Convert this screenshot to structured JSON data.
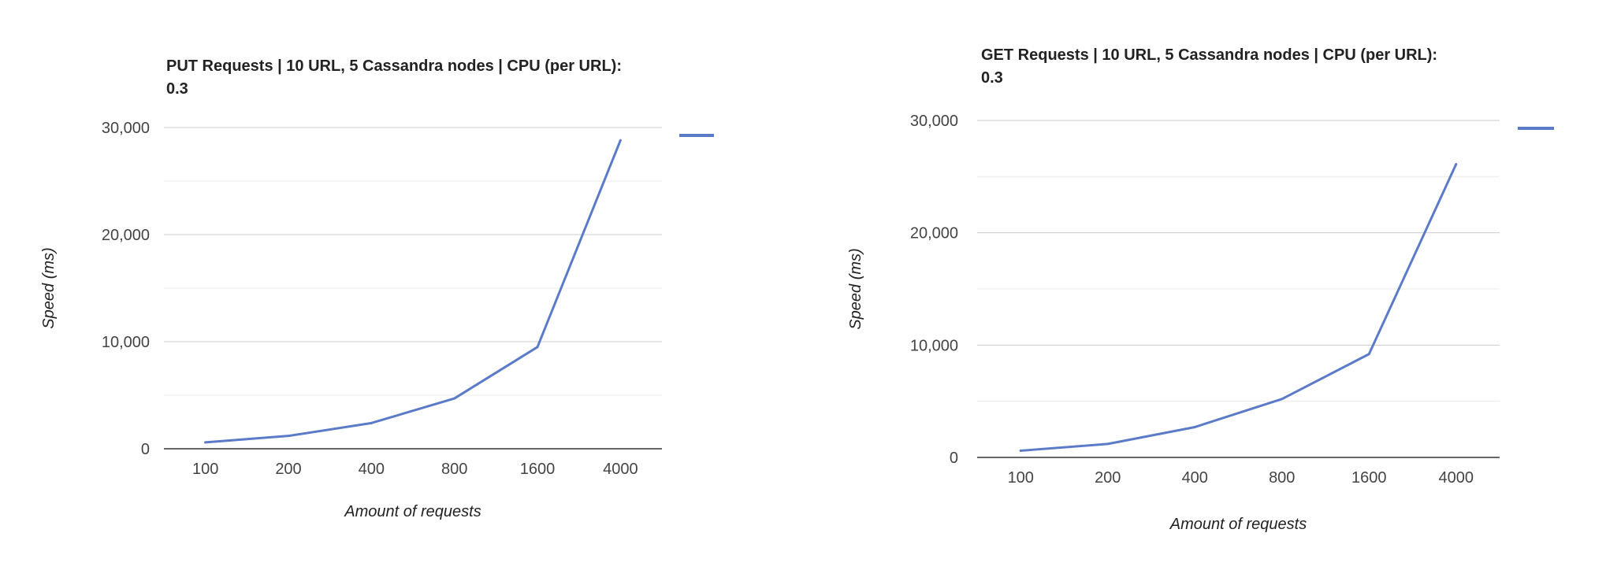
{
  "chart_data": [
    {
      "type": "line",
      "title": "PUT Requests | 10 URL, 5 Cassandra nodes | CPU (per URL): 0.3",
      "xlabel": "Amount of requests",
      "ylabel": "Speed (ms)",
      "categories": [
        "100",
        "200",
        "400",
        "800",
        "1600",
        "4000"
      ],
      "series": [
        {
          "values": [
            600,
            1200,
            2400,
            4700,
            9500,
            28800
          ],
          "color": "#5b7bc9"
        }
      ],
      "ylim": [
        0,
        30000
      ],
      "yticks": [
        "0",
        "10,000",
        "20,000",
        "30,000"
      ],
      "grid": true,
      "legend": "right"
    },
    {
      "type": "line",
      "title": "GET Requests | 10 URL, 5 Cassandra nodes | CPU (per URL): 0.3",
      "xlabel": "Amount of requests",
      "ylabel": "Speed (ms)",
      "categories": [
        "100",
        "200",
        "400",
        "800",
        "1600",
        "4000"
      ],
      "series": [
        {
          "values": [
            600,
            1200,
            2700,
            5200,
            9200,
            26100
          ],
          "color": "#5b7bc9"
        }
      ],
      "ylim": [
        0,
        30000
      ],
      "yticks": [
        "0",
        "10,000",
        "20,000",
        "30,000"
      ],
      "grid": true,
      "legend": "right"
    }
  ]
}
